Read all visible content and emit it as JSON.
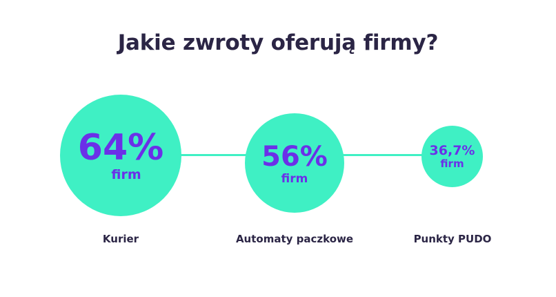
{
  "chart_data": {
    "type": "bubble",
    "title": "Jakie zwroty oferują firmy?",
    "categories": [
      "Kurier",
      "Automaty paczkowe",
      "Punkty PUDO"
    ],
    "values": [
      64,
      56,
      36.7
    ],
    "value_labels": [
      "64%",
      "56%",
      "36,7%"
    ],
    "unit_label": "firm",
    "colors": {
      "bubble": "#3ff0c4",
      "value_text": "#6b30e8",
      "label_text": "#2b2545"
    }
  }
}
